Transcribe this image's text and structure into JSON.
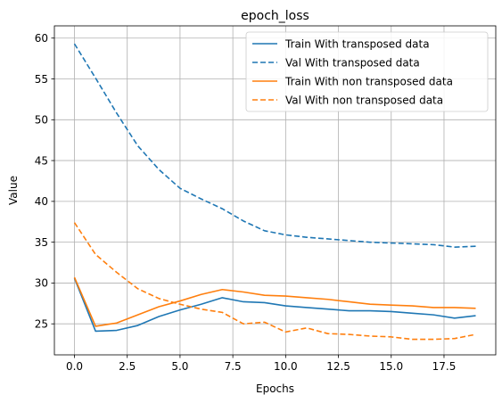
{
  "chart_data": {
    "type": "line",
    "title": "epoch_loss",
    "xlabel": "Epochs",
    "ylabel": "Value",
    "xlim": [
      -0.95,
      19.95
    ],
    "ylim": [
      21.2,
      61.5
    ],
    "xticks": [
      0.0,
      2.5,
      5.0,
      7.5,
      10.0,
      12.5,
      15.0,
      17.5
    ],
    "xtick_labels": [
      "0.0",
      "2.5",
      "5.0",
      "7.5",
      "10.0",
      "12.5",
      "15.0",
      "17.5"
    ],
    "yticks": [
      25,
      30,
      35,
      40,
      45,
      50,
      55,
      60
    ],
    "ytick_labels": [
      "25",
      "30",
      "35",
      "40",
      "45",
      "50",
      "55",
      "60"
    ],
    "grid": true,
    "legend_position": "top-right",
    "x": [
      0,
      1,
      2,
      3,
      4,
      5,
      6,
      7,
      8,
      9,
      10,
      11,
      12,
      13,
      14,
      15,
      16,
      17,
      18,
      19
    ],
    "series": [
      {
        "name": "Train With transposed data",
        "color": "#1f77b4",
        "style": "solid",
        "values": [
          30.6,
          24.1,
          24.2,
          24.8,
          25.9,
          26.7,
          27.4,
          28.2,
          27.7,
          27.6,
          27.2,
          27.0,
          26.8,
          26.6,
          26.6,
          26.5,
          26.3,
          26.1,
          25.7,
          26.0
        ]
      },
      {
        "name": "Val With transposed data",
        "color": "#1f77b4",
        "style": "dashed",
        "values": [
          59.3,
          55.1,
          50.8,
          46.8,
          43.9,
          41.6,
          40.3,
          39.1,
          37.6,
          36.4,
          35.9,
          35.6,
          35.4,
          35.2,
          35.0,
          34.9,
          34.8,
          34.7,
          34.4,
          34.5
        ]
      },
      {
        "name": "Train With non transposed data",
        "color": "#ff7f0e",
        "style": "solid",
        "values": [
          30.7,
          24.7,
          25.1,
          26.1,
          27.1,
          27.8,
          28.6,
          29.2,
          28.9,
          28.5,
          28.4,
          28.2,
          28.0,
          27.7,
          27.4,
          27.3,
          27.2,
          27.0,
          27.0,
          26.9
        ]
      },
      {
        "name": "Val With non transposed data",
        "color": "#ff7f0e",
        "style": "dashed",
        "values": [
          37.4,
          33.5,
          31.3,
          29.3,
          28.1,
          27.4,
          26.8,
          26.4,
          25.0,
          25.2,
          24.0,
          24.5,
          23.8,
          23.7,
          23.5,
          23.4,
          23.1,
          23.1,
          23.2,
          23.7
        ]
      }
    ]
  }
}
